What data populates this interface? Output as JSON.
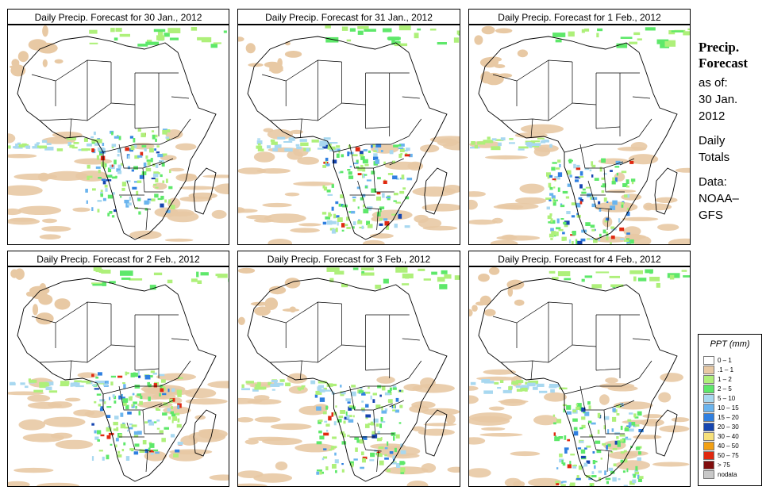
{
  "panels": [
    {
      "title": "Daily Precip. Forecast for  30 Jan., 2012"
    },
    {
      "title": "Daily Precip. Forecast for  31 Jan., 2012"
    },
    {
      "title": "Daily Precip. Forecast for  1 Feb., 2012"
    },
    {
      "title": "Daily Precip. Forecast for  2 Feb., 2012"
    },
    {
      "title": "Daily Precip. Forecast for  3 Feb., 2012"
    },
    {
      "title": "Daily Precip. Forecast for  4 Feb., 2012"
    }
  ],
  "sidebar": {
    "heading1": "Precip.",
    "heading2": "Forecast",
    "asof": "as of:",
    "date1": "30 Jan.",
    "date2": "2012",
    "daily": "Daily",
    "totals": "Totals",
    "data": "Data:",
    "source1": "NOAA–",
    "source2": "GFS"
  },
  "legend": {
    "title": "PPT (mm)",
    "items": [
      {
        "label": "0 – 1",
        "color": "#ffffff"
      },
      {
        "label": ".1 – 1",
        "color": "#e8c9a4"
      },
      {
        "label": "1 – 2",
        "color": "#aef07a"
      },
      {
        "label": "2 – 5",
        "color": "#5ee86a"
      },
      {
        "label": "5 – 10",
        "color": "#a8d8f0"
      },
      {
        "label": "10 – 15",
        "color": "#6ab4ee"
      },
      {
        "label": "15 – 20",
        "color": "#2f7fe0"
      },
      {
        "label": "20 – 30",
        "color": "#1545b0"
      },
      {
        "label": "30 – 40",
        "color": "#f6e07a"
      },
      {
        "label": "40 – 50",
        "color": "#f2a014"
      },
      {
        "label": "50 – 75",
        "color": "#e02810"
      },
      {
        "label": "> 75",
        "color": "#800c0c"
      },
      {
        "label": "nodata",
        "color": "#c8c8c8"
      }
    ]
  }
}
